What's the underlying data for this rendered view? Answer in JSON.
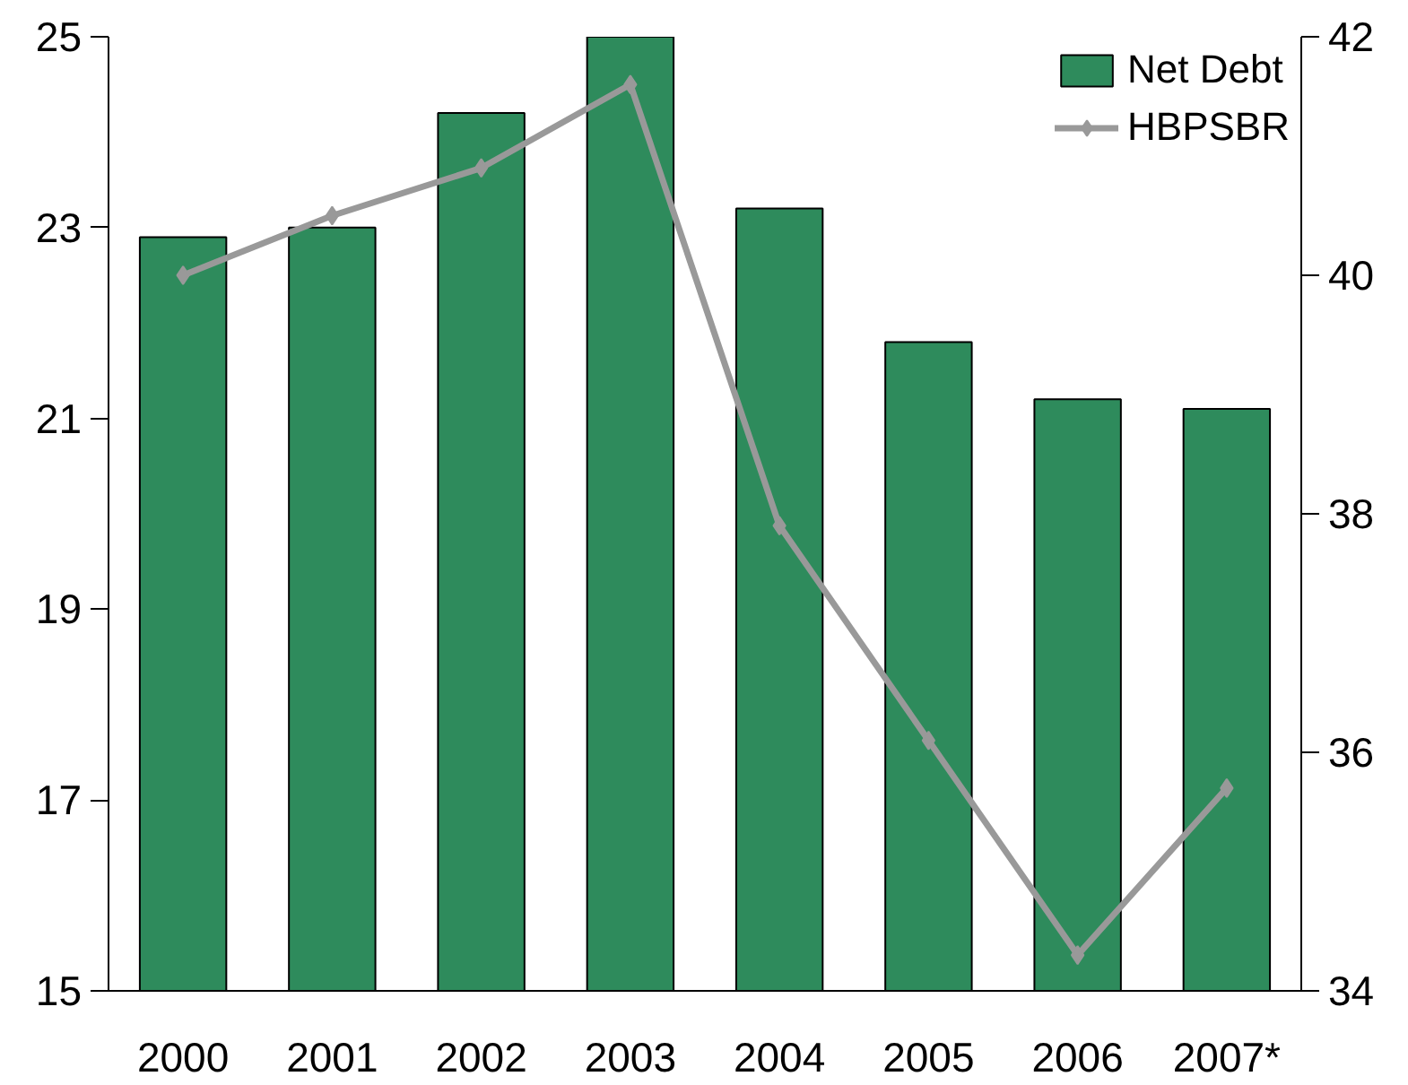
{
  "chart_data": {
    "type": "bar",
    "categories": [
      "2000",
      "2001",
      "2002",
      "2003",
      "2004",
      "2005",
      "2006",
      "2007*"
    ],
    "series": [
      {
        "name": "Net Debt",
        "color": "#2e8b5c",
        "values": [
          22.9,
          23.0,
          24.2,
          25.0,
          23.2,
          21.8,
          21.2,
          21.1
        ]
      },
      {
        "name": "HBPSBR",
        "type": "line",
        "axis": "y2",
        "color": "#999999",
        "values": [
          40.0,
          40.5,
          40.9,
          41.6,
          37.9,
          36.1,
          34.3,
          35.7
        ]
      }
    ],
    "ylim": [
      15,
      25
    ],
    "yticks": [
      15,
      17,
      19,
      21,
      23,
      25
    ],
    "y2lim": [
      34,
      42
    ],
    "y2ticks": [
      34,
      36,
      38,
      40,
      42
    ],
    "grid": false,
    "legend": "top right",
    "marker": "diamond",
    "line_style": "solid"
  }
}
